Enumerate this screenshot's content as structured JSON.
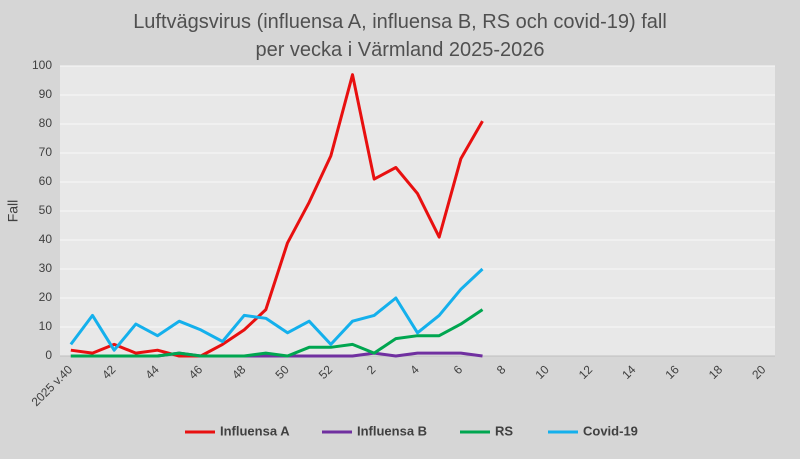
{
  "chart_data": {
    "type": "line",
    "title": "Luftvägsvirus (influensa A, influensa B, RS och covid-19) fall per vecka i Värmland 2025-2026",
    "y_label": "Fall",
    "categories": [
      "2025 v.40",
      null,
      "42",
      null,
      "44",
      null,
      "46",
      null,
      "48",
      null,
      "50",
      null,
      "52",
      null,
      "2",
      null,
      "4",
      null,
      "6",
      null,
      "8",
      null,
      "10",
      null,
      "12",
      null,
      "14",
      null,
      "16",
      null,
      "18",
      null,
      "20"
    ],
    "series": [
      {
        "name": "Influensa A",
        "color": "#e81010",
        "values": [
          2,
          1,
          4,
          1,
          2,
          0,
          0,
          4,
          9,
          16,
          39,
          53,
          69,
          97,
          61,
          65,
          56,
          41,
          68,
          81,
          null,
          null,
          null,
          null,
          null,
          null,
          null,
          null,
          null,
          null,
          null,
          null,
          null
        ]
      },
      {
        "name": "Influensa B",
        "color": "#7030a0",
        "values": [
          0,
          0,
          0,
          0,
          0,
          1,
          0,
          0,
          0,
          0,
          0,
          0,
          0,
          0,
          1,
          0,
          1,
          1,
          1,
          0,
          null,
          null,
          null,
          null,
          null,
          null,
          null,
          null,
          null,
          null,
          null,
          null,
          null
        ]
      },
      {
        "name": "RS",
        "color": "#00a650",
        "values": [
          0,
          0,
          0,
          0,
          0,
          1,
          0,
          0,
          0,
          1,
          0,
          3,
          3,
          4,
          1,
          6,
          7,
          7,
          11,
          16,
          null,
          null,
          null,
          null,
          null,
          null,
          null,
          null,
          null,
          null,
          null,
          null,
          null
        ]
      },
      {
        "name": "Covid-19",
        "color": "#14b0ec",
        "values": [
          4,
          14,
          2,
          11,
          7,
          12,
          9,
          5,
          14,
          13,
          8,
          12,
          4,
          12,
          14,
          20,
          8,
          14,
          23,
          30,
          null,
          null,
          null,
          null,
          null,
          null,
          null,
          null,
          null,
          null,
          null,
          null,
          null
        ]
      }
    ],
    "ylim": [
      0,
      100
    ],
    "yticks": [
      0,
      10,
      20,
      30,
      40,
      50,
      60,
      70,
      80,
      90,
      100
    ],
    "grid": true
  }
}
